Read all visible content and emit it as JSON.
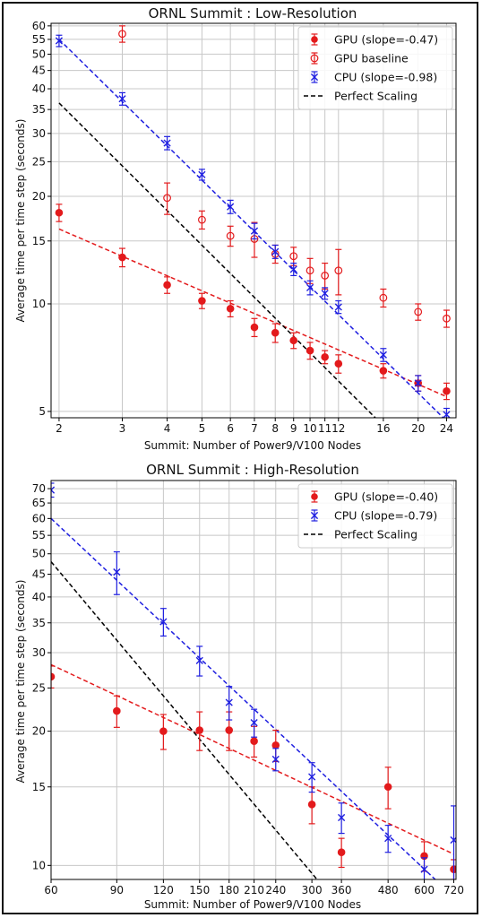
{
  "chart_data": [
    {
      "type": "scatter",
      "title": "ORNL Summit : Low-Resolution",
      "xlabel": "Summit: Number of Power9/V100 Nodes",
      "ylabel": "Average time per time step (seconds)",
      "xscale": "log",
      "yscale": "log",
      "xlim": [
        1.9,
        25.5
      ],
      "ylim": [
        4.8,
        61
      ],
      "xticks": [
        2,
        3,
        4,
        5,
        6,
        7,
        8,
        9,
        10,
        11,
        12,
        16,
        20,
        24
      ],
      "xtick_labels": [
        "2",
        "3",
        "4",
        "5",
        "6",
        "7",
        "8",
        "9",
        "10",
        "11",
        "12",
        "16",
        "20",
        "24"
      ],
      "yticks": [
        5,
        10,
        15,
        20,
        25,
        30,
        35,
        40,
        45,
        50,
        55,
        60
      ],
      "ytick_labels": [
        "5",
        "10",
        "15",
        "20",
        "25",
        "30",
        "35",
        "40",
        "45",
        "50",
        "55",
        "60"
      ],
      "grid": true,
      "legend_position": "top-right",
      "series": [
        {
          "name": "GPU (slope=-0.47)",
          "color": "#e31a1c",
          "marker": "filled-circle",
          "x": [
            2,
            3,
            4,
            5,
            6,
            7,
            8,
            9,
            10,
            11,
            12,
            16,
            20,
            24
          ],
          "y": [
            18.0,
            13.5,
            11.3,
            10.2,
            9.7,
            8.6,
            8.3,
            7.9,
            7.4,
            7.1,
            6.8,
            6.5,
            6.0,
            5.7
          ],
          "err": [
            1.0,
            0.8,
            0.6,
            0.5,
            0.5,
            0.5,
            0.5,
            0.4,
            0.4,
            0.3,
            0.4,
            0.3,
            0.3,
            0.3
          ]
        },
        {
          "name": "GPU baseline",
          "color": "#e31a1c",
          "marker": "open-circle",
          "x": [
            3,
            4,
            5,
            6,
            7,
            8,
            9,
            10,
            11,
            12,
            16,
            20,
            24
          ],
          "y": [
            57.0,
            19.8,
            17.2,
            15.5,
            15.2,
            13.8,
            13.6,
            12.4,
            12.0,
            12.4,
            10.4,
            9.5,
            9.1
          ],
          "err": [
            3.0,
            2.0,
            1.0,
            1.0,
            1.7,
            0.8,
            0.8,
            1.0,
            1.0,
            1.8,
            0.6,
            0.5,
            0.5
          ]
        },
        {
          "name": "CPU (slope=-0.98)",
          "color": "#1f1fe0",
          "marker": "x",
          "x": [
            2,
            3,
            4,
            5,
            6,
            7,
            8,
            9,
            10,
            11,
            12,
            16,
            20,
            24
          ],
          "y": [
            54.5,
            37.5,
            28.2,
            23.0,
            18.7,
            16.0,
            14.0,
            12.5,
            11.1,
            10.7,
            9.8,
            7.2,
            6.0,
            4.9
          ],
          "err": [
            2.0,
            1.5,
            1.2,
            0.8,
            0.8,
            0.8,
            0.6,
            0.5,
            0.5,
            0.4,
            0.4,
            0.3,
            0.3,
            0.2
          ]
        }
      ],
      "fit_lines": [
        {
          "name": "GPU (slope=-0.47)",
          "color": "#e31a1c",
          "x": [
            2,
            24
          ],
          "y": [
            16.2,
            5.5
          ]
        },
        {
          "name": "CPU (slope=-0.98)",
          "color": "#1f1fe0",
          "x": [
            2,
            24
          ],
          "y": [
            55.0,
            4.7
          ]
        },
        {
          "name": "Perfect Scaling",
          "color": "#000000",
          "x": [
            2,
            16
          ],
          "y": [
            36.5,
            4.56
          ]
        }
      ],
      "legend": [
        {
          "label": "GPU (slope=-0.47)",
          "color": "#e31a1c",
          "marker": "filled-circle"
        },
        {
          "label": "GPU baseline",
          "color": "#e31a1c",
          "marker": "open-circle"
        },
        {
          "label": "CPU (slope=-0.98)",
          "color": "#1f1fe0",
          "marker": "x"
        },
        {
          "label": "Perfect Scaling",
          "color": "#000000",
          "marker": "dash"
        }
      ]
    },
    {
      "type": "scatter",
      "title": "ORNL Summit : High-Resolution",
      "xlabel": "Summit: Number of Power9/V100 Nodes",
      "ylabel": "Average time per time step (seconds)",
      "xscale": "log",
      "yscale": "log",
      "xlim": [
        60,
        730
      ],
      "ylim": [
        9.3,
        73
      ],
      "xticks": [
        60,
        90,
        120,
        150,
        180,
        210,
        240,
        300,
        360,
        480,
        600,
        720
      ],
      "xtick_labels": [
        "60",
        "90",
        "120",
        "150",
        "180",
        "210",
        "240",
        "300",
        "360",
        "480",
        "600",
        "720"
      ],
      "yticks": [
        10,
        15,
        20,
        25,
        30,
        35,
        40,
        45,
        50,
        55,
        60,
        65,
        70
      ],
      "ytick_labels": [
        "10",
        "15",
        "20",
        "25",
        "30",
        "35",
        "40",
        "45",
        "50",
        "55",
        "60",
        "65",
        "70"
      ],
      "grid": true,
      "legend_position": "top-right",
      "series": [
        {
          "name": "GPU (slope=-0.40)",
          "color": "#e31a1c",
          "marker": "filled-circle",
          "x": [
            60,
            90,
            120,
            150,
            180,
            210,
            240,
            300,
            360,
            480,
            600,
            720
          ],
          "y": [
            26.5,
            22.2,
            20.0,
            20.1,
            20.1,
            19.0,
            18.6,
            13.7,
            10.7,
            15.0,
            10.5,
            9.8
          ],
          "err": [
            1.5,
            1.8,
            1.8,
            2.0,
            2.0,
            1.5,
            1.5,
            1.3,
            0.8,
            1.6,
            0.8,
            0.5
          ]
        },
        {
          "name": "CPU (slope=-0.79)",
          "color": "#1f1fe0",
          "marker": "x",
          "x": [
            60,
            90,
            120,
            150,
            180,
            210,
            240,
            300,
            360,
            480,
            600,
            720
          ],
          "y": [
            69.5,
            45.5,
            35.2,
            28.8,
            23.2,
            20.9,
            17.3,
            15.8,
            12.8,
            11.5,
            9.8,
            11.4
          ],
          "err": [
            2.5,
            5.0,
            2.5,
            2.2,
            2.0,
            1.5,
            1.0,
            1.2,
            1.0,
            0.8,
            0.6,
            2.2
          ]
        }
      ],
      "fit_lines": [
        {
          "name": "GPU (slope=-0.40)",
          "color": "#e31a1c",
          "x": [
            60,
            720
          ],
          "y": [
            28.2,
            10.6
          ]
        },
        {
          "name": "CPU (slope=-0.79)",
          "color": "#1f1fe0",
          "x": [
            60,
            720
          ],
          "y": [
            60.0,
            8.5
          ]
        },
        {
          "name": "Perfect Scaling",
          "color": "#000000",
          "x": [
            60,
            320
          ],
          "y": [
            48.0,
            9.0
          ]
        }
      ],
      "legend": [
        {
          "label": "GPU (slope=-0.40)",
          "color": "#e31a1c",
          "marker": "filled-circle"
        },
        {
          "label": "CPU (slope=-0.79)",
          "color": "#1f1fe0",
          "marker": "x"
        },
        {
          "label": "Perfect Scaling",
          "color": "#000000",
          "marker": "dash"
        }
      ]
    }
  ]
}
